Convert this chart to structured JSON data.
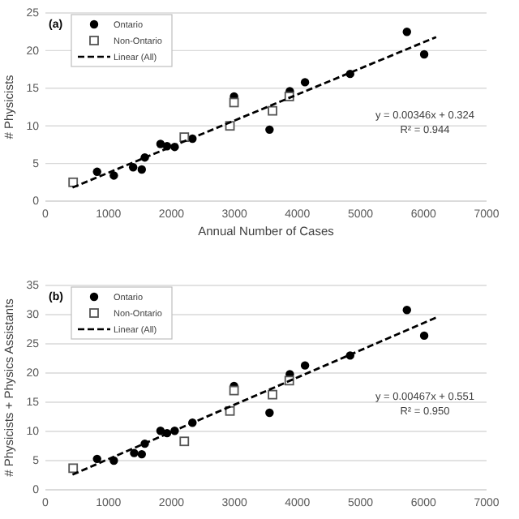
{
  "chart_data": [
    {
      "type": "scatter",
      "xlabel": "Annual Number of Cases",
      "ylabel": "# Physicists",
      "xlim": [
        0,
        7000
      ],
      "ylim": [
        0,
        25
      ],
      "xticks": [
        0,
        1000,
        2000,
        3000,
        4000,
        5000,
        6000,
        7000
      ],
      "yticks": [
        0,
        5,
        10,
        15,
        20,
        25
      ],
      "grid": "y",
      "legend": "top left",
      "annotations": [
        {
          "text": "(a)"
        },
        {
          "text": "y = 0.00346x + 0.324"
        },
        {
          "text": "R² = 0.944"
        }
      ],
      "series": [
        {
          "name": "Ontario",
          "marker": "circle",
          "color": "#000000",
          "x": [
            820,
            1086,
            1392,
            1529,
            1577,
            1826,
            1930,
            2051,
            2333,
            2993,
            3556,
            3878,
            4119,
            4835,
            5736,
            6010
          ],
          "values": [
            3.9,
            3.4,
            4.5,
            4.2,
            5.8,
            7.6,
            7.3,
            7.2,
            8.3,
            13.9,
            9.5,
            14.6,
            15.8,
            16.9,
            22.5,
            19.5
          ]
        },
        {
          "name": "Non-Ontario",
          "marker": "square",
          "color": "#555555",
          "x": [
            440,
            2204,
            2928,
            2993,
            3604,
            3870
          ],
          "values": [
            2.5,
            8.5,
            10.0,
            13.1,
            12.0,
            13.9
          ]
        },
        {
          "name": "Linear (All)",
          "type": "line",
          "line_style": "dashed",
          "color": "#000000",
          "x": [
            430,
            6200
          ],
          "values": [
            1.8,
            21.8
          ]
        }
      ]
    },
    {
      "type": "scatter",
      "ylabel": "# Physicists + Physics Assistants",
      "xlim": [
        0,
        7000
      ],
      "ylim": [
        0,
        35
      ],
      "xticks": [
        0,
        1000,
        2000,
        3000,
        4000,
        5000,
        6000,
        7000
      ],
      "yticks": [
        0,
        5,
        10,
        15,
        20,
        25,
        30,
        35
      ],
      "grid": "y",
      "legend": "top left",
      "annotations": [
        {
          "text": "(b)"
        },
        {
          "text": "y = 0.00467x + 0.551"
        },
        {
          "text": "R² = 0.950"
        }
      ],
      "series": [
        {
          "name": "Ontario",
          "marker": "circle",
          "color": "#000000",
          "x": [
            820,
            1086,
            1408,
            1529,
            1577,
            1826,
            1930,
            2051,
            2333,
            2993,
            3556,
            3878,
            4119,
            4835,
            5736,
            6010
          ],
          "values": [
            5.3,
            5.0,
            6.3,
            6.1,
            7.9,
            10.1,
            9.7,
            10.1,
            11.5,
            17.8,
            13.2,
            19.8,
            21.3,
            23.0,
            30.8,
            26.4
          ]
        },
        {
          "name": "Non-Ontario",
          "marker": "square",
          "color": "#555555",
          "x": [
            440,
            2204,
            2928,
            2993,
            3604,
            3870
          ],
          "values": [
            3.7,
            8.3,
            13.5,
            17.0,
            16.3,
            18.7
          ]
        },
        {
          "name": "Linear (All)",
          "type": "line",
          "line_style": "dashed",
          "color": "#000000",
          "x": [
            430,
            6200
          ],
          "values": [
            2.6,
            29.5
          ]
        }
      ]
    }
  ]
}
